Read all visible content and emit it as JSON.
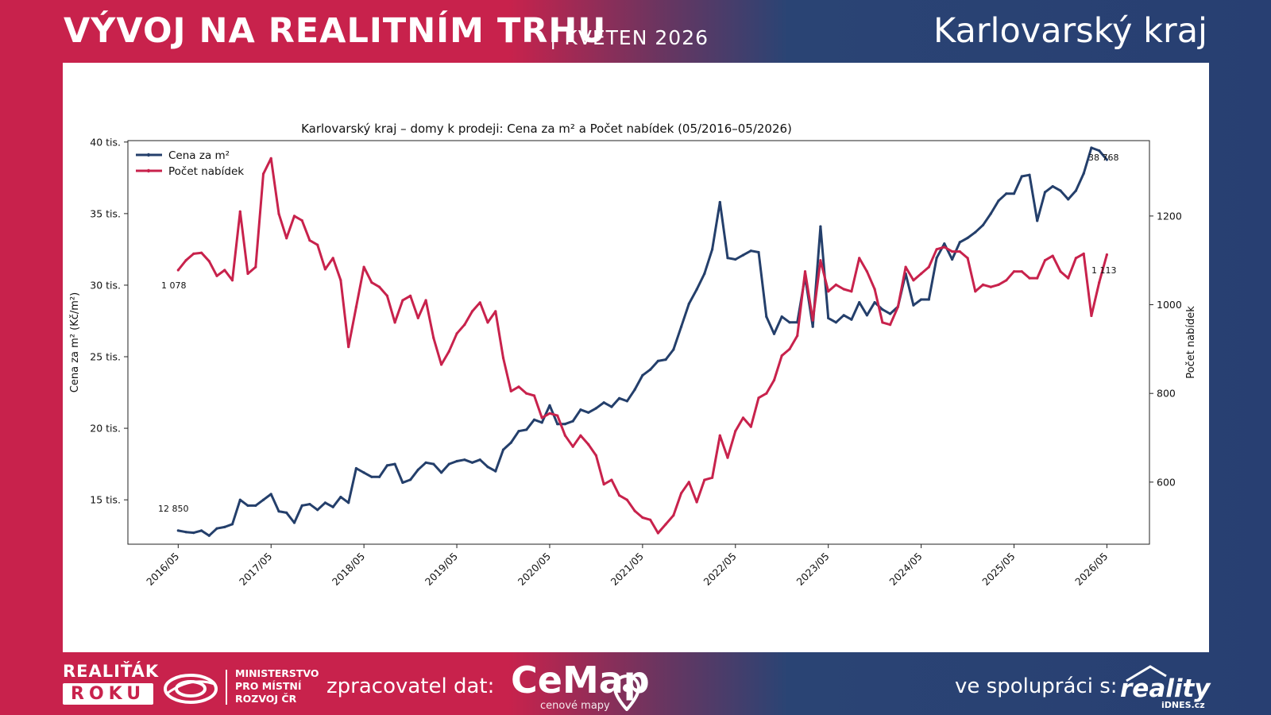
{
  "header": {
    "title": "VÝVOJ NA REALITNÍM TRHU",
    "subtitle": "| KVĚTEN 2026",
    "region": "Karlovarský kraj"
  },
  "footer": {
    "realitak_line1": "REALIŤÁK",
    "realitak_line2": "ROKU",
    "ministry_lines": [
      "MINISTERSTVO",
      "PRO MÍSTNÍ",
      "ROZVOJ ČR"
    ],
    "zpracovatel": "zpracovatel dat:",
    "cemap": "CeMap",
    "cemap_sub": "cenové mapy",
    "spoluprace": "ve spolupráci s:",
    "reality": "reality",
    "reality_sub": "iDNES.cz"
  },
  "colors": {
    "price": "#243f6b",
    "count": "#c8224c",
    "brand_red": "#c8224c",
    "brand_blue": "#283f72"
  },
  "chart_data": {
    "type": "line",
    "title": "Karlovarský kraj – domy k prodeji: Cena za m² a Počet nabídek (05/2016–05/2026)",
    "xlabel": "",
    "ylabel": "Cena za m² (Kč/m²)",
    "ylabel_right": "Počet nabídek",
    "x_ticks": [
      "2016/05",
      "2017/05",
      "2018/05",
      "2019/05",
      "2020/05",
      "2021/05",
      "2022/05",
      "2023/05",
      "2024/05",
      "2025/05",
      "2026/05"
    ],
    "y_ticks_left": [
      "15 tis.",
      "20 tis.",
      "25 tis.",
      "30 tis.",
      "35 tis.",
      "40 tis."
    ],
    "y_ticks_left_values": [
      15000,
      20000,
      25000,
      30000,
      35000,
      40000
    ],
    "y_ticks_right": [
      "600",
      "800",
      "1000",
      "1200"
    ],
    "y_ticks_right_values": [
      600,
      800,
      1000,
      1200
    ],
    "ylim_left": [
      11900,
      40100
    ],
    "ylim_right": [
      460,
      1370
    ],
    "x_months_range": [
      -6.5,
      125.5
    ],
    "legend_position": "top-left",
    "grid": false,
    "annotations": {
      "price_first": "12 850",
      "price_last": "38 768",
      "count_first": "1 078",
      "count_last": "1 113"
    },
    "series": [
      {
        "name": "Cena za m²",
        "axis": "left",
        "values": [
          12850,
          12750,
          12700,
          12850,
          12500,
          13000,
          13100,
          13300,
          15000,
          14600,
          14600,
          15000,
          15400,
          14200,
          14100,
          13400,
          14600,
          14700,
          14300,
          14800,
          14500,
          15200,
          14800,
          17200,
          16900,
          16600,
          16600,
          17400,
          17500,
          16200,
          16400,
          17100,
          17600,
          17500,
          16900,
          17500,
          17700,
          17800,
          17600,
          17800,
          17300,
          17000,
          18500,
          19000,
          19800,
          19900,
          20600,
          20400,
          21600,
          20300,
          20300,
          20500,
          21300,
          21100,
          21400,
          21800,
          21500,
          22100,
          21900,
          22700,
          23700,
          24100,
          24700,
          24800,
          25500,
          27100,
          28700,
          29700,
          30800,
          32500,
          35800,
          31900,
          31800,
          32100,
          32400,
          32300,
          27800,
          26600,
          27800,
          27400,
          27400,
          30600,
          27100,
          34100,
          27700,
          27400,
          27900,
          27600,
          28800,
          27900,
          28800,
          28300,
          28000,
          28500,
          30800,
          28600,
          29000,
          29000,
          31900,
          32900,
          31800,
          33000,
          33300,
          33700,
          34200,
          35000,
          35900,
          36400,
          36400,
          37600,
          37700,
          34500,
          36500,
          36900,
          36600,
          36000,
          36600,
          37800,
          39600,
          39400,
          38768
        ]
      },
      {
        "name": "Počet nabídek",
        "axis": "right",
        "values": [
          1078,
          1100,
          1115,
          1117,
          1098,
          1065,
          1078,
          1055,
          1210,
          1070,
          1085,
          1295,
          1330,
          1205,
          1150,
          1200,
          1190,
          1145,
          1135,
          1080,
          1105,
          1055,
          905,
          995,
          1085,
          1050,
          1040,
          1020,
          960,
          1010,
          1020,
          970,
          1010,
          925,
          865,
          895,
          935,
          955,
          985,
          1005,
          960,
          985,
          880,
          805,
          815,
          800,
          795,
          745,
          755,
          750,
          705,
          680,
          705,
          685,
          660,
          595,
          605,
          570,
          560,
          535,
          520,
          515,
          485,
          505,
          525,
          575,
          600,
          555,
          605,
          610,
          705,
          655,
          715,
          745,
          725,
          790,
          800,
          830,
          885,
          900,
          930,
          1075,
          965,
          1100,
          1030,
          1045,
          1035,
          1030,
          1105,
          1075,
          1035,
          960,
          955,
          995,
          1085,
          1055,
          1070,
          1085,
          1125,
          1130,
          1120,
          1120,
          1105,
          1030,
          1045,
          1040,
          1045,
          1055,
          1075,
          1075,
          1060,
          1060,
          1100,
          1110,
          1075,
          1060,
          1105,
          1115,
          975,
          1050,
          1113
        ]
      }
    ]
  }
}
